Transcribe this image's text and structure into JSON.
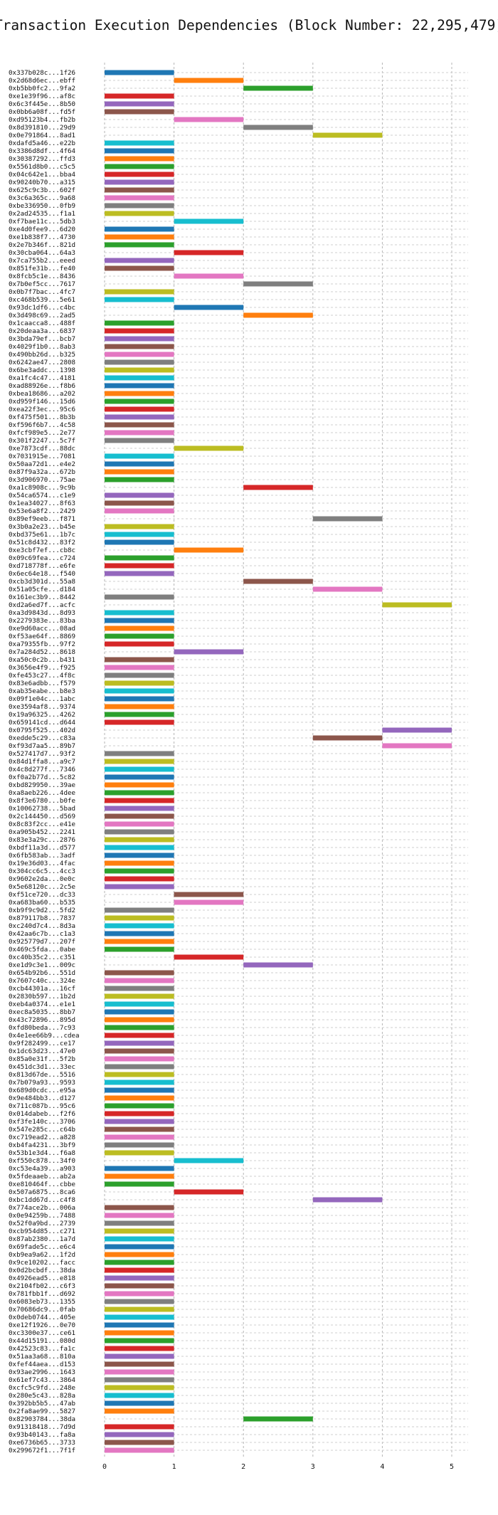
{
  "chart_data": {
    "type": "bar",
    "orientation": "horizontal",
    "subtype": "gantt",
    "title": "Transaction Execution Dependencies (Block Number: 22,295,479)",
    "xlabel": "",
    "ylabel": "",
    "xlim": [
      0,
      5.4
    ],
    "xticks": [
      0,
      1,
      2,
      3,
      4,
      5
    ],
    "grid": true,
    "legend": "none",
    "colors": [
      "#1f77b4",
      "#ff7f0e",
      "#2ca02c",
      "#d62728",
      "#9467bd",
      "#8c564b",
      "#e377c2",
      "#7f7f7f",
      "#bcbd22",
      "#17becf"
    ],
    "rows": [
      [
        "0x337b028c...1f26",
        0
      ],
      [
        "0x2d68d6ec...ebff",
        1
      ],
      [
        "0xb5bb0fc2...9fa2",
        2
      ],
      [
        "0xe1e39f96...af8c",
        0
      ],
      [
        "0x6c3f445e...8b50",
        0
      ],
      [
        "0x0bb6a08f...fd5f",
        0
      ],
      [
        "0xd95123b4...fb2b",
        1
      ],
      [
        "0x8d391810...29d9",
        2
      ],
      [
        "0x0e791864...8ad1",
        3
      ],
      [
        "0xdafd5a46...e22b",
        0
      ],
      [
        "0x3386d8df...4f64",
        0
      ],
      [
        "0x30387292...ffd3",
        0
      ],
      [
        "0x5561d8b0...c5c5",
        0
      ],
      [
        "0x04c642e1...bba4",
        0
      ],
      [
        "0x90240b70...a315",
        0
      ],
      [
        "0x625c9c3b...602f",
        0
      ],
      [
        "0x3c6a365c...9a68",
        0
      ],
      [
        "0xbe336950...0fb9",
        0
      ],
      [
        "0x2ad24535...f1a1",
        0
      ],
      [
        "0xf7bae11c...5db3",
        1
      ],
      [
        "0xe4d0fee9...6d20",
        0
      ],
      [
        "0xe1b838f7...4730",
        0
      ],
      [
        "0x2e7b346f...821d",
        0
      ],
      [
        "0x30cba064...64a3",
        1
      ],
      [
        "0x7ca755b2...eeed",
        0
      ],
      [
        "0x851fe31b...fe40",
        0
      ],
      [
        "0x8fcb5c1e...8436",
        1
      ],
      [
        "0x7b0ef5cc...7617",
        2
      ],
      [
        "0x0b7f7bac...4fc7",
        0
      ],
      [
        "0xc468b539...5e61",
        0
      ],
      [
        "0x93dc1df6...c4bc",
        1
      ],
      [
        "0x3d498c69...2ad5",
        2
      ],
      [
        "0x1caacca8...488f",
        0
      ],
      [
        "0x20deaa3a...6837",
        0
      ],
      [
        "0x3bda79ef...bcb7",
        0
      ],
      [
        "0x4029f1b0...8ab3",
        0
      ],
      [
        "0x490bb26d...b325",
        0
      ],
      [
        "0x6242ae47...2808",
        0
      ],
      [
        "0x6be3addc...1398",
        0
      ],
      [
        "0xa1fc4c47...4181",
        0
      ],
      [
        "0xad88926e...f8b6",
        0
      ],
      [
        "0xbea18686...a202",
        0
      ],
      [
        "0xd959f146...15d6",
        0
      ],
      [
        "0xea22f3ec...95c6",
        0
      ],
      [
        "0xf475f501...8b3b",
        0
      ],
      [
        "0xf596f6b7...4c58",
        0
      ],
      [
        "0xfcf989e5...2e77",
        0
      ],
      [
        "0x301f2247...5c7f",
        0
      ],
      [
        "0xe7873cdf...88dc",
        1
      ],
      [
        "0x7031915e...7081",
        0
      ],
      [
        "0x50aa72d1...e4e2",
        0
      ],
      [
        "0x87f9a32a...672b",
        0
      ],
      [
        "0x3d906970...75ae",
        0
      ],
      [
        "0xa1c8908c...9c9b",
        2
      ],
      [
        "0x54ca6574...c1e9",
        0
      ],
      [
        "0x1ea34027...8f63",
        0
      ],
      [
        "0x53e6a8f2...2429",
        0
      ],
      [
        "0x89ef9eeb...f871",
        3
      ],
      [
        "0x3b0a2e23...b45e",
        0
      ],
      [
        "0xbd375e61...1b7c",
        0
      ],
      [
        "0x51c8d432...83f2",
        0
      ],
      [
        "0xe3cbf7ef...cb8c",
        1
      ],
      [
        "0x09c69fea...c724",
        0
      ],
      [
        "0xd718778f...e6fe",
        0
      ],
      [
        "0x6ec64e18...f540",
        0
      ],
      [
        "0xcb3d301d...55a8",
        2
      ],
      [
        "0x51a05cfe...d184",
        3
      ],
      [
        "0x161ec3b9...8442",
        0
      ],
      [
        "0xd2a6ed7f...acfc",
        4
      ],
      [
        "0xa3d9843d...8d93",
        0
      ],
      [
        "0x2279383e...83ba",
        0
      ],
      [
        "0xe9d60acc...08ad",
        0
      ],
      [
        "0xf53ae64f...8869",
        0
      ],
      [
        "0xa79355fb...97f2",
        0
      ],
      [
        "0x7a284d52...8618",
        1
      ],
      [
        "0xa50c0c2b...b431",
        0
      ],
      [
        "0x3656e4f9...f925",
        0
      ],
      [
        "0xfe453c27...4f8c",
        0
      ],
      [
        "0x83e6adbb...f579",
        0
      ],
      [
        "0xab35eabe...b8e3",
        0
      ],
      [
        "0x09f1e04c...1abc",
        0
      ],
      [
        "0xe3594af8...9374",
        0
      ],
      [
        "0x19a96325...4262",
        0
      ],
      [
        "0x659141cd...d644",
        0
      ],
      [
        "0x0795f525...402d",
        4
      ],
      [
        "0xedde5c29...c83a",
        3
      ],
      [
        "0xf93d7aa5...89b7",
        4
      ],
      [
        "0x527417d7...93f2",
        0
      ],
      [
        "0x84d1ffa8...a9c7",
        0
      ],
      [
        "0x4c8d277f...7346",
        0
      ],
      [
        "0xf0a2b77d...5c82",
        0
      ],
      [
        "0xbd829950...39ae",
        0
      ],
      [
        "0xa8aeb226...4dee",
        0
      ],
      [
        "0x8f3e6780...b0fe",
        0
      ],
      [
        "0x10062738...5bad",
        0
      ],
      [
        "0x2c144450...d569",
        0
      ],
      [
        "0x8c83f2cc...e41e",
        0
      ],
      [
        "0xa905b452...2241",
        0
      ],
      [
        "0x83e3a29c...2876",
        0
      ],
      [
        "0xbdf11a3d...d577",
        0
      ],
      [
        "0x6fb583ab...3adf",
        0
      ],
      [
        "0x19e36d03...4fac",
        0
      ],
      [
        "0x304cc6c5...4cc3",
        0
      ],
      [
        "0x9602e2da...0e0c",
        0
      ],
      [
        "0x5e68120c...2c5e",
        0
      ],
      [
        "0xf51ce720...dc33",
        1
      ],
      [
        "0xa683ba60...b535",
        1
      ],
      [
        "0xb9f9c9d2...5fd2",
        0
      ],
      [
        "0x879117b8...7837",
        0
      ],
      [
        "0xc240d7c4...8d3a",
        0
      ],
      [
        "0x42aa6c7b...c1a3",
        0
      ],
      [
        "0x925779d7...207f",
        0
      ],
      [
        "0x469c5fda...0abe",
        0
      ],
      [
        "0xc40b35c2...c351",
        1
      ],
      [
        "0xe1d9c3e1...009c",
        2
      ],
      [
        "0x654b92b6...551d",
        0
      ],
      [
        "0x7607c40c...324e",
        0
      ],
      [
        "0xcb44301a...16cf",
        0
      ],
      [
        "0x2830b597...1b2d",
        0
      ],
      [
        "0xeb4a0374...e1e1",
        0
      ],
      [
        "0xec8a5035...8bb7",
        0
      ],
      [
        "0x43c72896...895d",
        0
      ],
      [
        "0xfd80beda...7c93",
        0
      ],
      [
        "0x4e1ee66b9...cdea",
        0
      ],
      [
        "0x9f282499...ce17",
        0
      ],
      [
        "0x1dc63d23...47e0",
        0
      ],
      [
        "0x85a0e31f...5f2b",
        0
      ],
      [
        "0x451dc3d1...33ec",
        0
      ],
      [
        "0x813d67de...5516",
        0
      ],
      [
        "0x7b079a93...9593",
        0
      ],
      [
        "0x689d0cdc...e95a",
        0
      ],
      [
        "0x9e484bb3...d127",
        0
      ],
      [
        "0x711c087b...95c6",
        0
      ],
      [
        "0x014dabeb...f2f6",
        0
      ],
      [
        "0xf3fe140c...3706",
        0
      ],
      [
        "0x547e285c...c64b",
        0
      ],
      [
        "0xc719ead2...a828",
        0
      ],
      [
        "0xb4fa4231...3bf9",
        0
      ],
      [
        "0x53b1e3d4...f6a8",
        0
      ],
      [
        "0xf550c878...34f0",
        1
      ],
      [
        "0xc53e4a39...a903",
        0
      ],
      [
        "0x5fdeaaeb...ab2a",
        0
      ],
      [
        "0xe810464f...cbbe",
        0
      ],
      [
        "0x507a6875...8ca6",
        1
      ],
      [
        "0xbc1dd67d...c4f8",
        3
      ],
      [
        "0x774ace2b...006a",
        0
      ],
      [
        "0x0e94259b...7488",
        0
      ],
      [
        "0x52f0a9bd...2739",
        0
      ],
      [
        "0xcb954d85...c271",
        0
      ],
      [
        "0x87ab2380...1a7d",
        0
      ],
      [
        "0x69fade5c...e6c4",
        0
      ],
      [
        "0xb9ea9a62...1f2d",
        0
      ],
      [
        "0x9ce10202...facc",
        0
      ],
      [
        "0x0d2bcbdf...38da",
        0
      ],
      [
        "0x4926ead5...e818",
        0
      ],
      [
        "0x2104fb02...c6f3",
        0
      ],
      [
        "0x781fbb1f...d692",
        0
      ],
      [
        "0x6083eb73...1355",
        0
      ],
      [
        "0x70686dc9...0fab",
        0
      ],
      [
        "0x0deb0744...405e",
        0
      ],
      [
        "0xe12f1926...0e70",
        0
      ],
      [
        "0xc3300e37...ce61",
        0
      ],
      [
        "0x44d15191...080d",
        0
      ],
      [
        "0x42523c83...fa1c",
        0
      ],
      [
        "0x51aa3a68...810a",
        0
      ],
      [
        "0xfef44aea...d153",
        0
      ],
      [
        "0x93ae2996...1643",
        0
      ],
      [
        "0x61ef7c43...3864",
        0
      ],
      [
        "0xcfc5c9fd...248e",
        0
      ],
      [
        "0x280e5c43...828a",
        0
      ],
      [
        "0x392bb5b5...47ab",
        0
      ],
      [
        "0x2fa8ae99...5827",
        0
      ],
      [
        "0x82903784...38da",
        2
      ],
      [
        "0x91318418...7d9d",
        0
      ],
      [
        "0x93b40143...fa8a",
        0
      ],
      [
        "0xe6736b65...3733",
        0
      ],
      [
        "0x299672f1...7f1f",
        0
      ]
    ]
  }
}
